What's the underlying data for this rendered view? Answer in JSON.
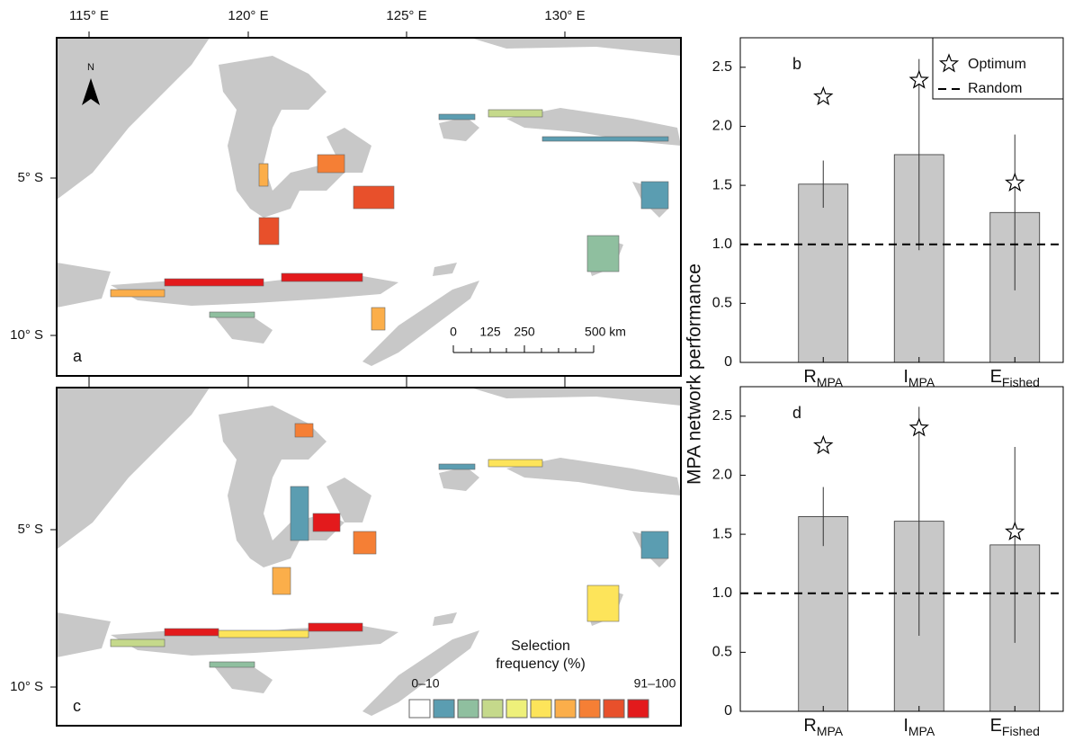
{
  "maps": {
    "lon_labels": [
      "115° E",
      "120° E",
      "125° E",
      "130° E"
    ],
    "lat_labels": [
      "5° S",
      "10° S"
    ],
    "panels": [
      {
        "label": "a"
      },
      {
        "label": "c"
      }
    ],
    "north": "N",
    "scale_bar": [
      "0",
      "125",
      "250",
      "500 km"
    ],
    "legend": {
      "title": [
        "Selection",
        "frequency (%)"
      ],
      "low": "0–10",
      "high": "91–100",
      "colors": [
        "#ffffff",
        "#5b9db1",
        "#8fbf9f",
        "#c5d98b",
        "#eef07a",
        "#fde45a",
        "#fbae4a",
        "#f57f35",
        "#e8502b",
        "#e31a1c"
      ]
    }
  },
  "chart_data": [
    {
      "type": "bar",
      "panel": "b",
      "ylabel": "MPA network performance",
      "categories": [
        "R",
        "I",
        "E"
      ],
      "category_subscripts": [
        "MPA",
        "MPA",
        "Fished"
      ],
      "values": [
        1.51,
        1.76,
        1.27
      ],
      "errors": [
        0.2,
        0.81,
        0.66
      ],
      "color": "#c8c8c8",
      "optimum": {
        "name": "Optimum",
        "values": [
          2.25,
          2.39,
          1.52
        ]
      },
      "reference": {
        "name": "Random",
        "value": 1
      },
      "ylim": [
        0,
        2.75
      ],
      "yticks": [
        0,
        0.5,
        {
          "value": 1,
          "label": "1.0"
        },
        1.5,
        {
          "value": 2,
          "label": "2.0"
        },
        2.5
      ],
      "legend": "upper right"
    },
    {
      "type": "bar",
      "panel": "d",
      "categories": [
        "R",
        "I",
        "E"
      ],
      "category_subscripts": [
        "MPA",
        "MPA",
        "Fished"
      ],
      "values": [
        1.65,
        1.61,
        1.41
      ],
      "errors": [
        0.25,
        0.97,
        0.83
      ],
      "color": "#c8c8c8",
      "optimum": {
        "values": [
          2.25,
          2.4,
          1.52
        ]
      },
      "reference": {
        "value": 1
      },
      "ylim": [
        0,
        2.75
      ],
      "yticks": [
        0,
        0.5,
        {
          "value": 1,
          "label": "1.0"
        },
        1.5,
        {
          "value": 2,
          "label": "2.0"
        },
        2.5
      ]
    }
  ]
}
